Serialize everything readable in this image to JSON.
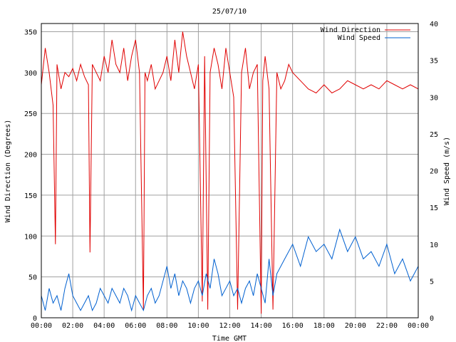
{
  "chart_data": {
    "type": "line",
    "title": "25/07/10",
    "xlabel": "Time GMT",
    "ylabel_left": "Wind Direction (Degrees)",
    "ylabel_right": "Wind Speed (m/s)",
    "x_ticks": [
      "00:00",
      "02:00",
      "04:00",
      "06:00",
      "08:00",
      "10:00",
      "12:00",
      "14:00",
      "16:00",
      "18:00",
      "20:00",
      "22:00",
      "00:00"
    ],
    "x_range_hours": [
      0,
      24
    ],
    "ylim_left": [
      0,
      360
    ],
    "ylim_right": [
      0,
      40
    ],
    "y_ticks_left": [
      0,
      50,
      100,
      150,
      200,
      250,
      300,
      350
    ],
    "y_ticks_right": [
      0,
      5,
      10,
      15,
      20,
      25,
      30,
      35,
      40
    ],
    "grid": true,
    "legend_position": "top-right",
    "colors": {
      "direction": "#e00000",
      "speed": "#0060d0"
    },
    "series": [
      {
        "name": "Wind Direction",
        "axis": "left",
        "x_hours": [
          0,
          0.25,
          0.5,
          0.75,
          0.9,
          1,
          1.25,
          1.5,
          1.75,
          2,
          2.25,
          2.5,
          2.75,
          3,
          3.1,
          3.25,
          3.5,
          3.75,
          4,
          4.25,
          4.5,
          4.75,
          5,
          5.25,
          5.5,
          5.75,
          6,
          6.25,
          6.5,
          6.6,
          6.75,
          7,
          7.25,
          7.5,
          7.75,
          8,
          8.25,
          8.5,
          8.75,
          9,
          9.25,
          9.5,
          9.75,
          10,
          10.25,
          10.4,
          10.6,
          10.75,
          11,
          11.25,
          11.5,
          11.75,
          12,
          12.25,
          12.5,
          12.75,
          13,
          13.25,
          13.5,
          13.75,
          14,
          14.1,
          14.25,
          14.5,
          14.75,
          15,
          15.25,
          15.5,
          15.75,
          16,
          16.5,
          17,
          17.5,
          18,
          18.5,
          19,
          19.5,
          20,
          20.5,
          21,
          21.5,
          22,
          22.5,
          23,
          23.5,
          24
        ],
        "values": [
          285,
          330,
          300,
          260,
          90,
          310,
          280,
          300,
          295,
          305,
          290,
          310,
          295,
          285,
          80,
          310,
          300,
          290,
          320,
          300,
          340,
          310,
          300,
          330,
          290,
          320,
          340,
          300,
          10,
          300,
          290,
          310,
          280,
          290,
          300,
          320,
          290,
          340,
          300,
          350,
          320,
          300,
          280,
          310,
          20,
          320,
          10,
          300,
          330,
          310,
          280,
          330,
          300,
          270,
          10,
          300,
          330,
          280,
          300,
          310,
          5,
          290,
          320,
          280,
          10,
          300,
          280,
          290,
          310,
          300,
          290,
          280,
          275,
          285,
          275,
          280,
          290,
          285,
          280,
          285,
          280,
          290,
          285,
          280,
          285,
          280
        ]
      },
      {
        "name": "Wind Speed",
        "axis": "right",
        "x_hours": [
          0,
          0.25,
          0.5,
          0.75,
          1,
          1.25,
          1.5,
          1.75,
          2,
          2.25,
          2.5,
          2.75,
          3,
          3.25,
          3.5,
          3.75,
          4,
          4.25,
          4.5,
          4.75,
          5,
          5.25,
          5.5,
          5.75,
          6,
          6.25,
          6.5,
          6.75,
          7,
          7.25,
          7.5,
          7.75,
          8,
          8.25,
          8.5,
          8.75,
          9,
          9.25,
          9.5,
          9.75,
          10,
          10.25,
          10.5,
          10.75,
          11,
          11.25,
          11.5,
          11.75,
          12,
          12.25,
          12.5,
          12.75,
          13,
          13.25,
          13.5,
          13.75,
          14,
          14.25,
          14.5,
          14.75,
          15,
          15.5,
          16,
          16.5,
          17,
          17.5,
          18,
          18.5,
          19,
          19.5,
          20,
          20.5,
          21,
          21.5,
          22,
          22.5,
          23,
          23.5,
          24
        ],
        "values": [
          3,
          1,
          4,
          2,
          3,
          1,
          4,
          6,
          3,
          2,
          1,
          2,
          3,
          1,
          2,
          4,
          3,
          2,
          4,
          3,
          2,
          4,
          3,
          1,
          3,
          2,
          1,
          3,
          4,
          2,
          3,
          5,
          7,
          4,
          6,
          3,
          5,
          4,
          2,
          4,
          5,
          3,
          6,
          4,
          8,
          6,
          3,
          4,
          5,
          3,
          4,
          2,
          4,
          5,
          3,
          6,
          4,
          2,
          8,
          3,
          6,
          8,
          10,
          7,
          11,
          9,
          10,
          8,
          12,
          9,
          11,
          8,
          9,
          7,
          10,
          6,
          8,
          5,
          7
        ]
      }
    ]
  }
}
